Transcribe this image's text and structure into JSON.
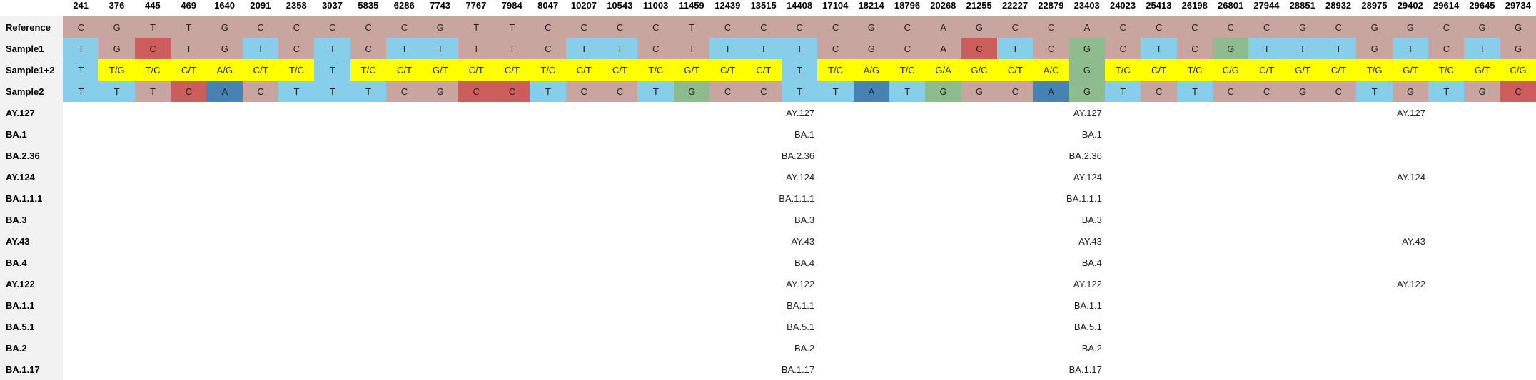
{
  "chart_data": {
    "type": "table",
    "positions": [
      "241",
      "376",
      "445",
      "469",
      "1640",
      "2091",
      "2358",
      "3037",
      "5835",
      "6286",
      "7743",
      "7767",
      "7984",
      "8047",
      "10207",
      "10543",
      "11003",
      "11459",
      "12439",
      "13515",
      "14408",
      "17104",
      "18214",
      "18796",
      "20268",
      "21255",
      "22227",
      "22879",
      "23403",
      "24023",
      "25413",
      "26198",
      "26801",
      "27944",
      "28851",
      "28932",
      "28975",
      "29402",
      "29614",
      "29645",
      "29734"
    ],
    "rows": [
      {
        "label": "Reference",
        "bases": [
          "C",
          "G",
          "T",
          "T",
          "G",
          "C",
          "C",
          "C",
          "C",
          "C",
          "G",
          "T",
          "T",
          "C",
          "C",
          "C",
          "C",
          "T",
          "C",
          "C",
          "C",
          "C",
          "G",
          "C",
          "A",
          "G",
          "C",
          "C",
          "A",
          "C",
          "C",
          "C",
          "C",
          "C",
          "G",
          "C",
          "G",
          "G",
          "C",
          "G",
          "G"
        ]
      },
      {
        "label": "Sample1",
        "bases": [
          "T",
          "G",
          "C",
          "T",
          "G",
          "T",
          "C",
          "T",
          "C",
          "T",
          "T",
          "T",
          "T",
          "C",
          "T",
          "T",
          "C",
          "T",
          "T",
          "T",
          "T",
          "C",
          "G",
          "C",
          "A",
          "C",
          "T",
          "C",
          "G",
          "C",
          "T",
          "C",
          "G",
          "T",
          "T",
          "T",
          "G",
          "T",
          "C",
          "T",
          "G"
        ]
      },
      {
        "label": "Sample1+2",
        "bases": [
          "T",
          "T/G",
          "T/C",
          "C/T",
          "A/G",
          "C/T",
          "T/C",
          "T",
          "T/C",
          "C/T",
          "G/T",
          "C/T",
          "C/T",
          "T/C",
          "C/T",
          "C/T",
          "T/C",
          "G/T",
          "C/T",
          "C/T",
          "T",
          "T/C",
          "A/G",
          "T/C",
          "G/A",
          "G/C",
          "C/T",
          "A/C",
          "G",
          "T/C",
          "C/T",
          "T/C",
          "C/G",
          "C/T",
          "G/T",
          "C/T",
          "T/G",
          "G/T",
          "T/C",
          "G/T",
          "C/G"
        ]
      },
      {
        "label": "Sample2",
        "bases": [
          "T",
          "T",
          "T",
          "C",
          "A",
          "C",
          "T",
          "T",
          "T",
          "C",
          "G",
          "C",
          "C",
          "T",
          "C",
          "C",
          "T",
          "G",
          "C",
          "C",
          "T",
          "T",
          "A",
          "T",
          "G",
          "G",
          "C",
          "A",
          "G",
          "T",
          "C",
          "T",
          "C",
          "C",
          "G",
          "C",
          "T",
          "G",
          "T",
          "G",
          "C"
        ]
      }
    ],
    "lineage_rows": [
      {
        "label": "AY.127",
        "cols": {
          "20": "AY.127",
          "28": "AY.127",
          "37": "AY.127"
        }
      },
      {
        "label": "BA.1",
        "cols": {
          "20": "BA.1",
          "28": "BA.1"
        }
      },
      {
        "label": "BA.2.36",
        "cols": {
          "20": "BA.2.36",
          "28": "BA.2.36"
        }
      },
      {
        "label": "AY.124",
        "cols": {
          "20": "AY.124",
          "28": "AY.124",
          "37": "AY.124"
        }
      },
      {
        "label": "BA.1.1.1",
        "cols": {
          "20": "BA.1.1.1",
          "28": "BA.1.1.1"
        }
      },
      {
        "label": "BA.3",
        "cols": {
          "20": "BA.3",
          "28": "BA.3"
        }
      },
      {
        "label": "AY.43",
        "cols": {
          "20": "AY.43",
          "28": "AY.43",
          "37": "AY.43"
        }
      },
      {
        "label": "BA.4",
        "cols": {
          "20": "BA.4",
          "28": "BA.4"
        }
      },
      {
        "label": "AY.122",
        "cols": {
          "20": "AY.122",
          "28": "AY.122",
          "37": "AY.122"
        }
      },
      {
        "label": "BA.1.1",
        "cols": {
          "20": "BA.1.1",
          "28": "BA.1.1"
        }
      },
      {
        "label": "BA.5.1",
        "cols": {
          "20": "BA.5.1",
          "28": "BA.5.1"
        }
      },
      {
        "label": "BA.2",
        "cols": {
          "20": "BA.2",
          "28": "BA.2"
        }
      },
      {
        "label": "BA.1.17",
        "cols": {
          "20": "BA.1.17",
          "28": "BA.1.17"
        }
      }
    ],
    "base_colors": {
      "C": "#c9a5a0",
      "G": "#c9a5a0",
      "T": "#87ceeb",
      "mixed": "#ffff00",
      "Sample1_C_alt": "#cd5c5c",
      "Sample1_G_alt": "#8fbc8f",
      "Sample2_A": "#4682b4",
      "Sample2_G_alt": "#8fbc8f",
      "Sample2_C_alt": "#cd5c5c"
    },
    "cell_colors": {
      "Reference": [
        "#c9a5a0",
        "#c9a5a0",
        "#c9a5a0",
        "#c9a5a0",
        "#c9a5a0",
        "#c9a5a0",
        "#c9a5a0",
        "#c9a5a0",
        "#c9a5a0",
        "#c9a5a0",
        "#c9a5a0",
        "#c9a5a0",
        "#c9a5a0",
        "#c9a5a0",
        "#c9a5a0",
        "#c9a5a0",
        "#c9a5a0",
        "#c9a5a0",
        "#c9a5a0",
        "#c9a5a0",
        "#c9a5a0",
        "#c9a5a0",
        "#c9a5a0",
        "#c9a5a0",
        "#c9a5a0",
        "#c9a5a0",
        "#c9a5a0",
        "#c9a5a0",
        "#c9a5a0",
        "#c9a5a0",
        "#c9a5a0",
        "#c9a5a0",
        "#c9a5a0",
        "#c9a5a0",
        "#c9a5a0",
        "#c9a5a0",
        "#c9a5a0",
        "#c9a5a0",
        "#c9a5a0",
        "#c9a5a0",
        "#c9a5a0"
      ],
      "Sample1": [
        "#87ceeb",
        "#c9a5a0",
        "#cd5c5c",
        "#c9a5a0",
        "#c9a5a0",
        "#87ceeb",
        "#c9a5a0",
        "#87ceeb",
        "#c9a5a0",
        "#87ceeb",
        "#87ceeb",
        "#c9a5a0",
        "#c9a5a0",
        "#c9a5a0",
        "#87ceeb",
        "#87ceeb",
        "#c9a5a0",
        "#c9a5a0",
        "#87ceeb",
        "#87ceeb",
        "#87ceeb",
        "#c9a5a0",
        "#c9a5a0",
        "#c9a5a0",
        "#c9a5a0",
        "#cd5c5c",
        "#87ceeb",
        "#c9a5a0",
        "#8fbc8f",
        "#c9a5a0",
        "#87ceeb",
        "#c9a5a0",
        "#8fbc8f",
        "#87ceeb",
        "#87ceeb",
        "#87ceeb",
        "#c9a5a0",
        "#87ceeb",
        "#c9a5a0",
        "#87ceeb",
        "#c9a5a0"
      ],
      "Sample1+2": [
        "#87ceeb",
        "#ffff00",
        "#ffff00",
        "#ffff00",
        "#ffff00",
        "#ffff00",
        "#ffff00",
        "#87ceeb",
        "#ffff00",
        "#ffff00",
        "#ffff00",
        "#ffff00",
        "#ffff00",
        "#ffff00",
        "#ffff00",
        "#ffff00",
        "#ffff00",
        "#ffff00",
        "#ffff00",
        "#ffff00",
        "#87ceeb",
        "#ffff00",
        "#ffff00",
        "#ffff00",
        "#ffff00",
        "#ffff00",
        "#ffff00",
        "#ffff00",
        "#8fbc8f",
        "#ffff00",
        "#ffff00",
        "#ffff00",
        "#ffff00",
        "#ffff00",
        "#ffff00",
        "#ffff00",
        "#ffff00",
        "#ffff00",
        "#ffff00",
        "#ffff00",
        "#ffff00"
      ],
      "Sample2": [
        "#87ceeb",
        "#87ceeb",
        "#c9a5a0",
        "#cd5c5c",
        "#4682b4",
        "#c9a5a0",
        "#87ceeb",
        "#87ceeb",
        "#87ceeb",
        "#c9a5a0",
        "#c9a5a0",
        "#cd5c5c",
        "#cd5c5c",
        "#87ceeb",
        "#c9a5a0",
        "#c9a5a0",
        "#87ceeb",
        "#8fbc8f",
        "#c9a5a0",
        "#c9a5a0",
        "#87ceeb",
        "#87ceeb",
        "#4682b4",
        "#87ceeb",
        "#8fbc8f",
        "#c9a5a0",
        "#c9a5a0",
        "#4682b4",
        "#8fbc8f",
        "#87ceeb",
        "#c9a5a0",
        "#87ceeb",
        "#c9a5a0",
        "#c9a5a0",
        "#c9a5a0",
        "#c9a5a0",
        "#87ceeb",
        "#c9a5a0",
        "#87ceeb",
        "#c9a5a0",
        "#cd5c5c"
      ]
    }
  }
}
